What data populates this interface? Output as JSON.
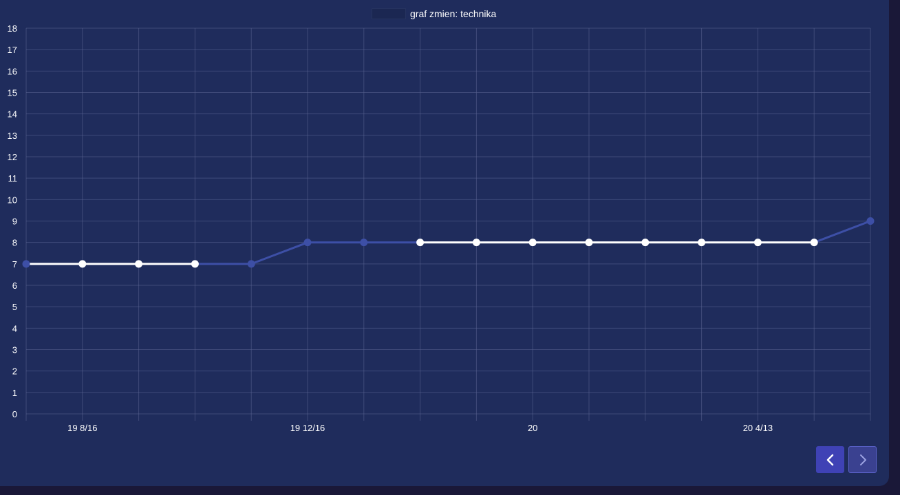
{
  "legend": {
    "label": "graf zmien: technika",
    "swatch_color": "#1b2752"
  },
  "colors": {
    "card": "#1f2c5c",
    "grid": "#5a6591",
    "line_blue": "#3d4fa6",
    "line_white": "#ffffff",
    "text": "#ffffff",
    "prev_button": "#3f42b5",
    "next_button": "#3a4190"
  },
  "navigation": {
    "prev_icon": "chevron-left-icon",
    "next_icon": "chevron-right-icon"
  },
  "chart_data": {
    "type": "line",
    "title": "",
    "xlabel": "",
    "ylabel": "",
    "ylim": [
      0,
      18
    ],
    "y_ticks": [
      0,
      1,
      2,
      3,
      4,
      5,
      6,
      7,
      8,
      9,
      10,
      11,
      12,
      13,
      14,
      15,
      16,
      17,
      18
    ],
    "x_tick_labels": [
      {
        "index": 1,
        "label": "19 8/16"
      },
      {
        "index": 5,
        "label": "19 12/16"
      },
      {
        "index": 9,
        "label": "20"
      },
      {
        "index": 13,
        "label": "20 4/13"
      }
    ],
    "grid": true,
    "legend_position": "top-center",
    "series": [
      {
        "name": "graf zmien: technika",
        "values": [
          7,
          7,
          7,
          7,
          7,
          8,
          8,
          8,
          8,
          8,
          8,
          8,
          8,
          8,
          8,
          9
        ],
        "highlighted": [
          true,
          true,
          true,
          true,
          false,
          false,
          false,
          true,
          true,
          true,
          true,
          true,
          true,
          true,
          true,
          false
        ]
      }
    ]
  }
}
